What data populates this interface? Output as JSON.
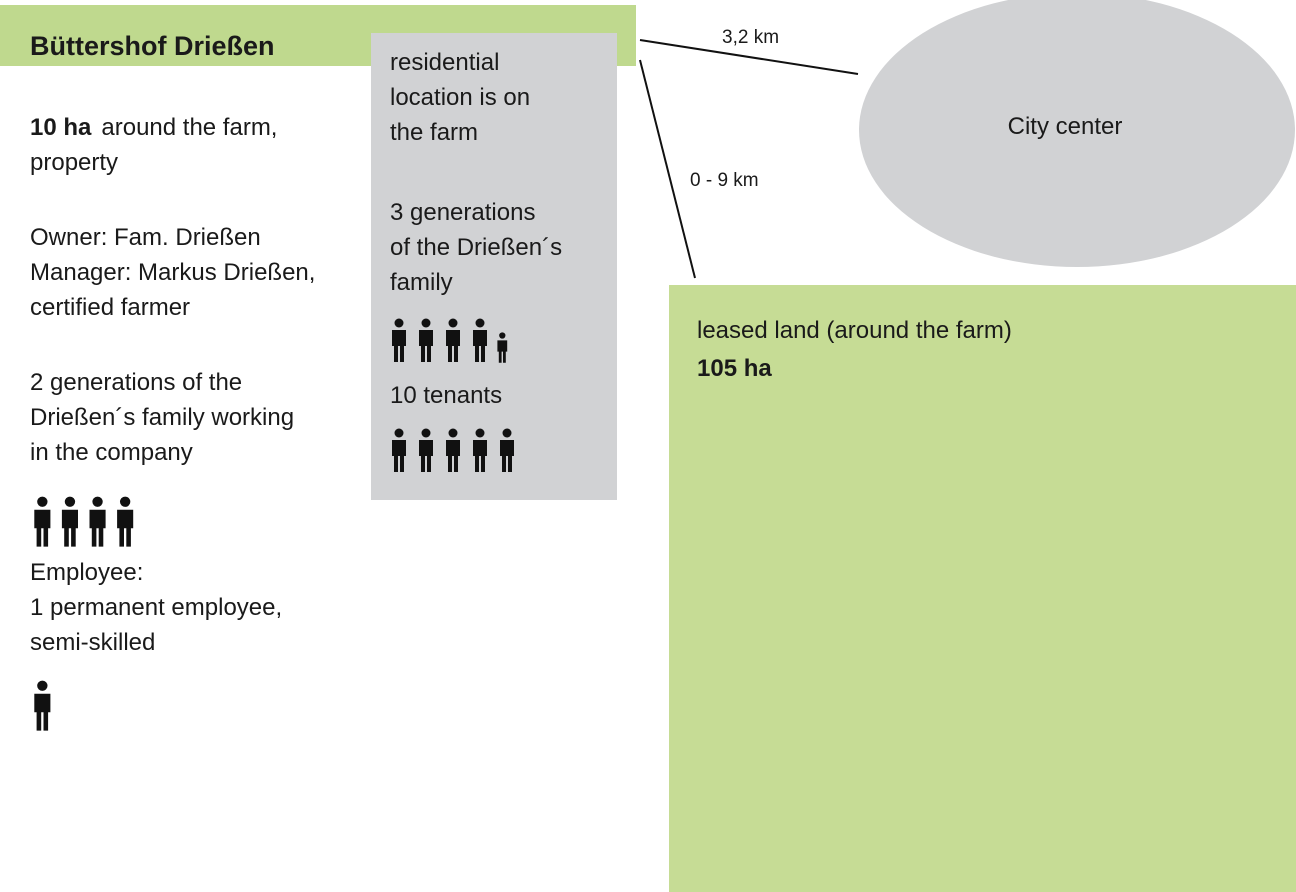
{
  "header": {
    "title": "Büttershof Drießen"
  },
  "farm": {
    "area": {
      "amount": "10 ha",
      "text": [
        "around the farm,",
        "property"
      ]
    },
    "owner": [
      "Owner: Fam. Drießen",
      "Manager: Markus Drießen,",
      "certified farmer"
    ],
    "family": [
      "2 generations  of the",
      "Drießen´s family working",
      "in the company"
    ],
    "employee": [
      "Employee:",
      "1 permanent employee,",
      "semi-skilled"
    ]
  },
  "residence": {
    "location": [
      "residential",
      "location is on",
      "the farm"
    ],
    "generations": [
      "3 generations",
      "of the Drießen´s",
      "family"
    ],
    "tenants": "10 tenants"
  },
  "distances": {
    "city": "3,2 km",
    "land": "0 - 9 km"
  },
  "city": {
    "label": "City center"
  },
  "leased_land": {
    "label": "leased land (around the farm)",
    "area": "105 ha"
  }
}
